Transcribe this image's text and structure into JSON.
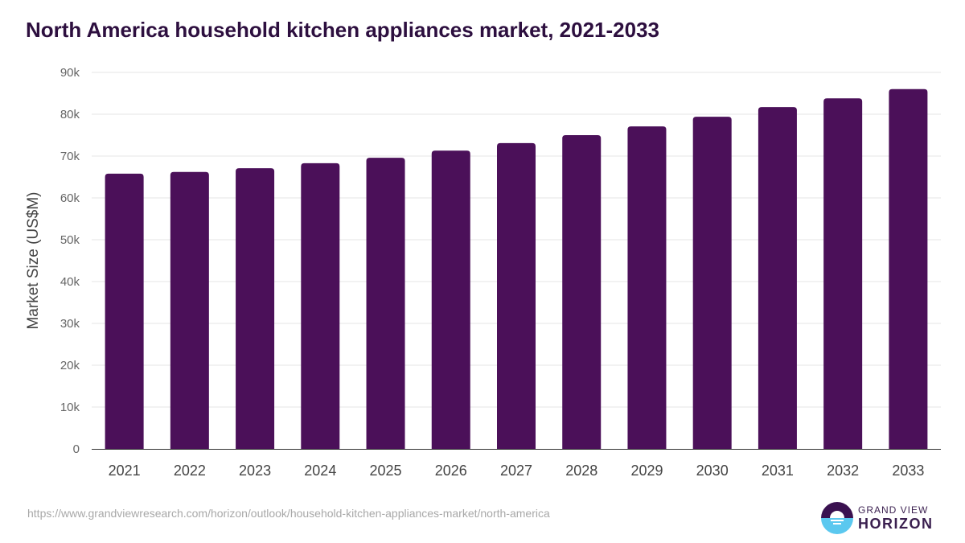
{
  "title": "North America household kitchen appliances market, 2021-2033",
  "source_url": "https://www.grandviewresearch.com/horizon/outlook/household-kitchen-appliances-market/north-america",
  "logo": {
    "line1": "GRAND VIEW",
    "line2": "HORIZON"
  },
  "colors": {
    "bar": "#4b1059",
    "title": "#2d0f3f",
    "grid": "#e6e6e6"
  },
  "chart_data": {
    "type": "bar",
    "title": "North America household kitchen appliances market, 2021-2033",
    "xlabel": "",
    "ylabel": "Market Size (US$M)",
    "categories": [
      "2021",
      "2022",
      "2023",
      "2024",
      "2025",
      "2026",
      "2027",
      "2028",
      "2029",
      "2030",
      "2031",
      "2032",
      "2033"
    ],
    "values": [
      65800,
      66200,
      67100,
      68300,
      69600,
      71300,
      73100,
      75000,
      77100,
      79400,
      81700,
      83800,
      86000
    ],
    "ylim": [
      0,
      90000
    ],
    "yticks": [
      0,
      10000,
      20000,
      30000,
      40000,
      50000,
      60000,
      70000,
      80000,
      90000
    ],
    "ytick_labels": [
      "0",
      "10k",
      "20k",
      "30k",
      "40k",
      "50k",
      "60k",
      "70k",
      "80k",
      "90k"
    ],
    "grid": true,
    "legend": "none"
  }
}
